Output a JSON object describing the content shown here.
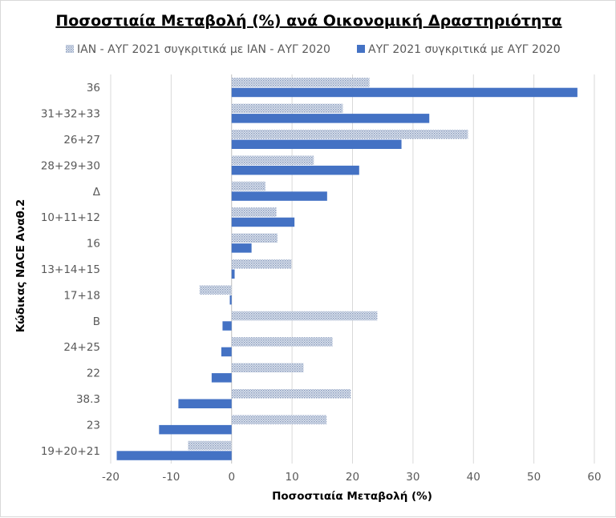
{
  "chart_data": {
    "type": "bar",
    "orientation": "horizontal",
    "title": "Ποσοστιαία Μεταβολή (%) ανά Οικονομική Δραστηριότητα",
    "xlabel": "Ποσοστιαία Μεταβολή (%)",
    "ylabel": "Κώδικας NACE Αναθ.2",
    "xlim": [
      -20,
      60
    ],
    "xticks": [
      "-20",
      "-10",
      "0",
      "10",
      "20",
      "30",
      "40",
      "50",
      "60"
    ],
    "grid": true,
    "legend_position": "top",
    "categories": [
      "36",
      "31+32+33",
      "26+27",
      "28+29+30",
      "Δ",
      "10+11+12",
      "16",
      "13+14+15",
      "17+18",
      "Β",
      "24+25",
      "22",
      "38.3",
      "23",
      "19+20+21"
    ],
    "series": [
      {
        "name": "ΙΑΝ - ΑΥΓ 2021 συγκριτικά με ΙΑΝ - ΑΥΓ 2020",
        "pattern": "dotted-light",
        "color": "#9dadc9",
        "values": [
          22.8,
          18.4,
          39.1,
          13.6,
          5.6,
          7.4,
          7.6,
          9.9,
          -5.3,
          24.1,
          16.7,
          11.9,
          19.7,
          15.7,
          -7.2
        ]
      },
      {
        "name": "ΑΥΓ 2021 συγκριτικά με ΑΥΓ 2020",
        "pattern": "solid",
        "color": "#4472c4",
        "values": [
          57.2,
          32.7,
          28.1,
          21.1,
          15.8,
          10.4,
          3.3,
          0.5,
          -0.3,
          -1.5,
          -1.7,
          -3.3,
          -8.8,
          -12.0,
          -19.0
        ]
      }
    ]
  }
}
